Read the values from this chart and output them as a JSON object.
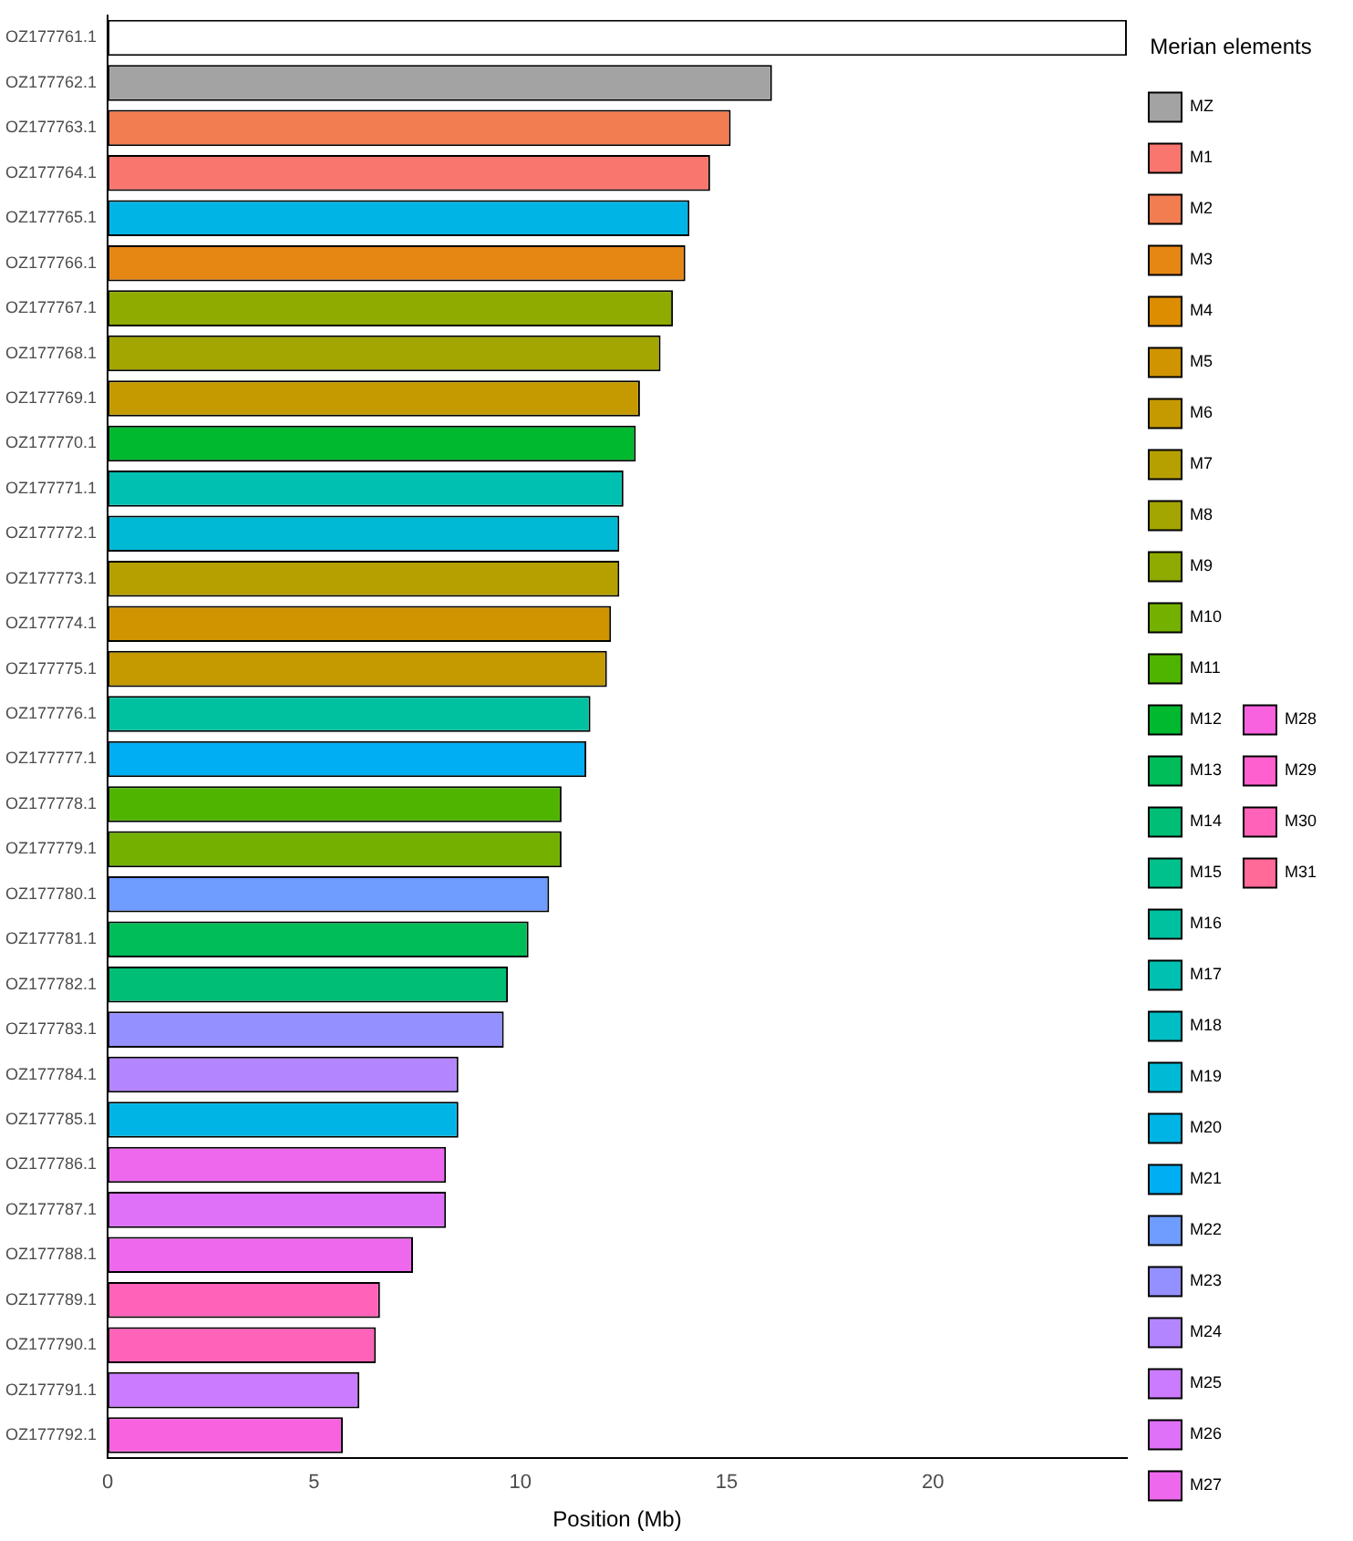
{
  "chart_data": {
    "type": "bar",
    "orientation": "horizontal",
    "xlabel": "Position (Mb)",
    "legend_title": "Merian elements",
    "legend": "right",
    "grid": false,
    "categories": [
      "OZ177761.1",
      "OZ177762.1",
      "OZ177763.1",
      "OZ177764.1",
      "OZ177765.1",
      "OZ177766.1",
      "OZ177767.1",
      "OZ177768.1",
      "OZ177769.1",
      "OZ177770.1",
      "OZ177771.1",
      "OZ177772.1",
      "OZ177773.1",
      "OZ177774.1",
      "OZ177775.1",
      "OZ177776.1",
      "OZ177777.1",
      "OZ177778.1",
      "OZ177779.1",
      "OZ177780.1",
      "OZ177781.1",
      "OZ177782.1",
      "OZ177783.1",
      "OZ177784.1",
      "OZ177785.1",
      "OZ177786.1",
      "OZ177787.1",
      "OZ177788.1",
      "OZ177789.1",
      "OZ177790.1",
      "OZ177791.1",
      "OZ177792.1"
    ],
    "xlim": [
      0,
      24.7
    ],
    "xticks": [
      0,
      5,
      10,
      15,
      20
    ],
    "series": [
      {
        "color": "#ffffff",
        "values": [
          24.7,
          null,
          null,
          null,
          null,
          null,
          null,
          null,
          null,
          null,
          null,
          null,
          null,
          null,
          null,
          null,
          null,
          null,
          null,
          null,
          null,
          null,
          null,
          null,
          null,
          null,
          null,
          null,
          null,
          null,
          null,
          null
        ]
      },
      {
        "name": "MZ",
        "color": "#a3a3a3",
        "values": [
          null,
          16.1,
          null,
          null,
          null,
          null,
          null,
          null,
          null,
          null,
          null,
          null,
          null,
          null,
          null,
          null,
          null,
          null,
          null,
          null,
          null,
          null,
          null,
          null,
          null,
          null,
          null,
          null,
          null,
          null,
          null,
          null
        ]
      },
      {
        "name": "M1",
        "color": "#f8766d",
        "values": [
          null,
          null,
          null,
          14.6,
          null,
          null,
          null,
          null,
          null,
          null,
          null,
          null,
          null,
          null,
          null,
          null,
          null,
          null,
          null,
          null,
          null,
          null,
          null,
          null,
          null,
          null,
          null,
          null,
          null,
          null,
          null,
          null
        ]
      },
      {
        "name": "M2",
        "color": "#f17d50",
        "values": [
          null,
          null,
          15.1,
          null,
          null,
          null,
          null,
          null,
          null,
          null,
          null,
          null,
          null,
          null,
          null,
          null,
          null,
          null,
          null,
          null,
          null,
          null,
          null,
          null,
          null,
          null,
          null,
          null,
          null,
          null,
          null,
          null
        ]
      },
      {
        "name": "M3",
        "color": "#e68613",
        "values": [
          null,
          null,
          null,
          null,
          null,
          14.0,
          null,
          null,
          null,
          null,
          null,
          null,
          null,
          null,
          null,
          null,
          null,
          null,
          null,
          null,
          null,
          null,
          null,
          null,
          null,
          null,
          null,
          null,
          null,
          null,
          null,
          null
        ]
      },
      {
        "name": "M4",
        "color": "#dc8d00",
        "values": [
          null,
          null,
          null,
          null,
          null,
          null,
          null,
          null,
          null,
          null,
          null,
          null,
          null,
          null,
          null,
          null,
          null,
          null,
          null,
          null,
          null,
          null,
          null,
          null,
          null,
          null,
          null,
          null,
          null,
          null,
          null,
          null
        ]
      },
      {
        "name": "M5",
        "color": "#d09400",
        "values": [
          null,
          null,
          null,
          null,
          null,
          null,
          null,
          null,
          null,
          null,
          null,
          null,
          null,
          12.2,
          null,
          null,
          null,
          null,
          null,
          null,
          null,
          null,
          null,
          null,
          null,
          null,
          null,
          null,
          null,
          null,
          null,
          null
        ]
      },
      {
        "name": "M6",
        "color": "#c49a00",
        "values": [
          null,
          null,
          null,
          null,
          null,
          null,
          null,
          null,
          12.9,
          null,
          null,
          null,
          null,
          null,
          12.1,
          null,
          null,
          null,
          null,
          null,
          null,
          null,
          null,
          null,
          null,
          null,
          null,
          null,
          null,
          null,
          null,
          null
        ]
      },
      {
        "name": "M7",
        "color": "#b5a000",
        "values": [
          null,
          null,
          null,
          null,
          null,
          null,
          null,
          null,
          null,
          null,
          null,
          null,
          12.4,
          null,
          null,
          null,
          null,
          null,
          null,
          null,
          null,
          null,
          null,
          null,
          null,
          null,
          null,
          null,
          null,
          null,
          null,
          null
        ]
      },
      {
        "name": "M8",
        "color": "#a3a500",
        "values": [
          null,
          null,
          null,
          null,
          null,
          null,
          null,
          13.4,
          null,
          null,
          null,
          null,
          null,
          null,
          null,
          null,
          null,
          null,
          null,
          null,
          null,
          null,
          null,
          null,
          null,
          null,
          null,
          null,
          null,
          null,
          null,
          null
        ]
      },
      {
        "name": "M9",
        "color": "#8fab00",
        "values": [
          null,
          null,
          null,
          null,
          null,
          null,
          13.7,
          null,
          null,
          null,
          null,
          null,
          null,
          null,
          null,
          null,
          null,
          null,
          null,
          null,
          null,
          null,
          null,
          null,
          null,
          null,
          null,
          null,
          null,
          null,
          null,
          null
        ]
      },
      {
        "name": "M10",
        "color": "#74b000",
        "values": [
          null,
          null,
          null,
          null,
          null,
          null,
          null,
          null,
          null,
          null,
          null,
          null,
          null,
          null,
          null,
          null,
          null,
          null,
          11.0,
          null,
          null,
          null,
          null,
          null,
          null,
          null,
          null,
          null,
          null,
          null,
          null,
          null
        ]
      },
      {
        "name": "M11",
        "color": "#4fb400",
        "values": [
          null,
          null,
          null,
          null,
          null,
          null,
          null,
          null,
          null,
          null,
          null,
          null,
          null,
          null,
          null,
          null,
          null,
          11.0,
          null,
          null,
          null,
          null,
          null,
          null,
          null,
          null,
          null,
          null,
          null,
          null,
          null,
          null
        ]
      },
      {
        "name": "M12",
        "color": "#00b92e",
        "values": [
          null,
          null,
          null,
          null,
          null,
          null,
          null,
          null,
          null,
          12.8,
          null,
          null,
          null,
          null,
          null,
          null,
          null,
          null,
          null,
          null,
          null,
          null,
          null,
          null,
          null,
          null,
          null,
          null,
          null,
          null,
          null,
          null
        ]
      },
      {
        "name": "M13",
        "color": "#00bc59",
        "values": [
          null,
          null,
          null,
          null,
          null,
          null,
          null,
          null,
          null,
          null,
          null,
          null,
          null,
          null,
          null,
          null,
          null,
          null,
          null,
          null,
          10.2,
          null,
          null,
          null,
          null,
          null,
          null,
          null,
          null,
          null,
          null,
          null
        ]
      },
      {
        "name": "M14",
        "color": "#00be75",
        "values": [
          null,
          null,
          null,
          null,
          null,
          null,
          null,
          null,
          null,
          null,
          null,
          null,
          null,
          null,
          null,
          null,
          null,
          null,
          null,
          null,
          null,
          9.7,
          null,
          null,
          null,
          null,
          null,
          null,
          null,
          null,
          null,
          null
        ]
      },
      {
        "name": "M15",
        "color": "#00c08b",
        "values": [
          null,
          null,
          null,
          null,
          null,
          null,
          null,
          null,
          null,
          null,
          null,
          null,
          null,
          null,
          null,
          null,
          null,
          null,
          null,
          null,
          null,
          null,
          null,
          null,
          null,
          null,
          null,
          null,
          null,
          null,
          null,
          null
        ]
      },
      {
        "name": "M16",
        "color": "#00c19f",
        "values": [
          null,
          null,
          null,
          null,
          null,
          null,
          null,
          null,
          null,
          null,
          null,
          null,
          null,
          null,
          null,
          11.7,
          null,
          null,
          null,
          null,
          null,
          null,
          null,
          null,
          null,
          null,
          null,
          null,
          null,
          null,
          null,
          null
        ]
      },
      {
        "name": "M17",
        "color": "#00c0b2",
        "values": [
          null,
          null,
          null,
          null,
          null,
          null,
          null,
          null,
          null,
          null,
          12.5,
          null,
          null,
          null,
          null,
          null,
          null,
          null,
          null,
          null,
          null,
          null,
          null,
          null,
          null,
          null,
          null,
          null,
          null,
          null,
          null,
          null
        ]
      },
      {
        "name": "M18",
        "color": "#00bec4",
        "values": [
          null,
          null,
          null,
          null,
          null,
          null,
          null,
          null,
          null,
          null,
          null,
          null,
          null,
          null,
          null,
          null,
          null,
          null,
          null,
          null,
          null,
          null,
          null,
          null,
          null,
          null,
          null,
          null,
          null,
          null,
          null,
          null
        ]
      },
      {
        "name": "M19",
        "color": "#00bad5",
        "values": [
          null,
          null,
          null,
          null,
          null,
          null,
          null,
          null,
          null,
          null,
          null,
          12.4,
          null,
          null,
          null,
          null,
          null,
          null,
          null,
          null,
          null,
          null,
          null,
          null,
          null,
          null,
          null,
          null,
          null,
          null,
          null,
          null
        ]
      },
      {
        "name": "M20",
        "color": "#00b5e5",
        "values": [
          null,
          null,
          null,
          null,
          14.1,
          null,
          null,
          null,
          null,
          null,
          null,
          null,
          null,
          null,
          null,
          null,
          null,
          null,
          null,
          null,
          null,
          null,
          null,
          null,
          8.5,
          null,
          null,
          null,
          null,
          null,
          null,
          null
        ]
      },
      {
        "name": "M21",
        "color": "#00aef3",
        "values": [
          null,
          null,
          null,
          null,
          null,
          null,
          null,
          null,
          null,
          null,
          null,
          null,
          null,
          null,
          null,
          null,
          11.6,
          null,
          null,
          null,
          null,
          null,
          null,
          null,
          null,
          null,
          null,
          null,
          null,
          null,
          null,
          null
        ]
      },
      {
        "name": "M22",
        "color": "#6e9cff",
        "values": [
          null,
          null,
          null,
          null,
          null,
          null,
          null,
          null,
          null,
          null,
          null,
          null,
          null,
          null,
          null,
          null,
          null,
          null,
          null,
          10.7,
          null,
          null,
          null,
          null,
          null,
          null,
          null,
          null,
          null,
          null,
          null,
          null
        ]
      },
      {
        "name": "M23",
        "color": "#9590ff",
        "values": [
          null,
          null,
          null,
          null,
          null,
          null,
          null,
          null,
          null,
          null,
          null,
          null,
          null,
          null,
          null,
          null,
          null,
          null,
          null,
          null,
          null,
          null,
          9.6,
          null,
          null,
          null,
          null,
          null,
          null,
          null,
          null,
          null
        ]
      },
      {
        "name": "M24",
        "color": "#b385ff",
        "values": [
          null,
          null,
          null,
          null,
          null,
          null,
          null,
          null,
          null,
          null,
          null,
          null,
          null,
          null,
          null,
          null,
          null,
          null,
          null,
          null,
          null,
          null,
          null,
          8.5,
          null,
          null,
          null,
          null,
          null,
          null,
          null,
          null
        ]
      },
      {
        "name": "M25",
        "color": "#cb7bff",
        "values": [
          null,
          null,
          null,
          null,
          null,
          null,
          null,
          null,
          null,
          null,
          null,
          null,
          null,
          null,
          null,
          null,
          null,
          null,
          null,
          null,
          null,
          null,
          null,
          null,
          null,
          null,
          null,
          null,
          null,
          null,
          6.1,
          null
        ]
      },
      {
        "name": "M26",
        "color": "#df70f8",
        "values": [
          null,
          null,
          null,
          null,
          null,
          null,
          null,
          null,
          null,
          null,
          null,
          null,
          null,
          null,
          null,
          null,
          null,
          null,
          null,
          null,
          null,
          null,
          null,
          null,
          null,
          null,
          8.2,
          null,
          null,
          null,
          null,
          null
        ]
      },
      {
        "name": "M27",
        "color": "#ed68ed",
        "values": [
          null,
          null,
          null,
          null,
          null,
          null,
          null,
          null,
          null,
          null,
          null,
          null,
          null,
          null,
          null,
          null,
          null,
          null,
          null,
          null,
          null,
          null,
          null,
          null,
          null,
          8.2,
          null,
          7.4,
          null,
          null,
          null,
          null
        ]
      },
      {
        "name": "M28",
        "color": "#f862df",
        "values": [
          null,
          null,
          null,
          null,
          null,
          null,
          null,
          null,
          null,
          null,
          null,
          null,
          null,
          null,
          null,
          null,
          null,
          null,
          null,
          null,
          null,
          null,
          null,
          null,
          null,
          null,
          null,
          null,
          null,
          null,
          null,
          5.7
        ]
      },
      {
        "name": "M29",
        "color": "#fe61cf",
        "values": [
          null,
          null,
          null,
          null,
          null,
          null,
          null,
          null,
          null,
          null,
          null,
          null,
          null,
          null,
          null,
          null,
          null,
          null,
          null,
          null,
          null,
          null,
          null,
          null,
          null,
          null,
          null,
          null,
          null,
          null,
          null,
          null
        ]
      },
      {
        "name": "M30",
        "color": "#ff63b9",
        "values": [
          null,
          null,
          null,
          null,
          null,
          null,
          null,
          null,
          null,
          null,
          null,
          null,
          null,
          null,
          null,
          null,
          null,
          null,
          null,
          null,
          null,
          null,
          null,
          null,
          null,
          null,
          null,
          null,
          6.6,
          6.5,
          null,
          null
        ]
      },
      {
        "name": "M31",
        "color": "#ff6a98",
        "values": [
          null,
          null,
          null,
          null,
          null,
          null,
          null,
          null,
          null,
          null,
          null,
          null,
          null,
          null,
          null,
          null,
          null,
          null,
          null,
          null,
          null,
          null,
          null,
          null,
          null,
          null,
          null,
          null,
          null,
          null,
          null,
          null
        ]
      }
    ]
  }
}
